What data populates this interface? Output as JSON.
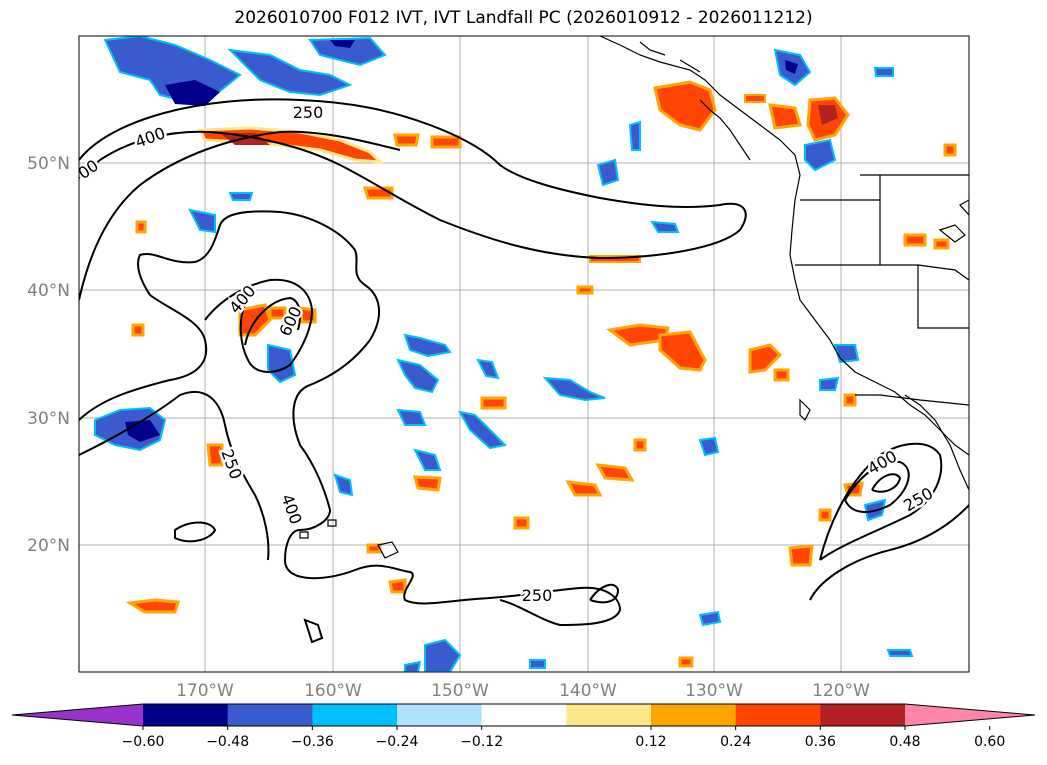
{
  "title": "2026010700 F012 IVT, IVT Landfall PC (2026010912 - 2026011212)",
  "lat_labels": [
    "50°N",
    "40°N",
    "30°N",
    "20°N"
  ],
  "lon_labels": [
    "170°W",
    "160°W",
    "150°W",
    "140°W",
    "130°W",
    "120°W"
  ],
  "contour_labels": [
    {
      "text": "400",
      "rotate": -20
    },
    {
      "text": "250",
      "rotate": 0
    },
    {
      "text": "00",
      "rotate": -35
    },
    {
      "text": "400",
      "rotate": -50
    },
    {
      "text": "600",
      "rotate": -65
    },
    {
      "text": "250",
      "rotate": 70
    },
    {
      "text": "400",
      "rotate": 70
    },
    {
      "text": "250",
      "rotate": 0
    },
    {
      "text": "400",
      "rotate": -30
    },
    {
      "text": "250",
      "rotate": -30
    }
  ],
  "colorbar": {
    "ticks": [
      "−0.60",
      "−0.48",
      "−0.36",
      "−0.24",
      "−0.12",
      "0.12",
      "0.24",
      "0.36",
      "0.48",
      "0.60"
    ],
    "colors": [
      "#9932cc",
      "#00008b",
      "#3a5bcd",
      "#00bfff",
      "#b0e2ff",
      "#ffffff",
      "#ffe88a",
      "#ffa500",
      "#ff4500",
      "#b22222",
      "#ff85aa"
    ]
  },
  "colors": {
    "neg_strong": "#00008b",
    "neg_mid": "#3a5bcd",
    "neg_light": "#00bfff",
    "pos_light": "#ffe88a",
    "pos_mid": "#ffa500",
    "pos_strong": "#ff4500",
    "pos_dark": "#b22222"
  }
}
